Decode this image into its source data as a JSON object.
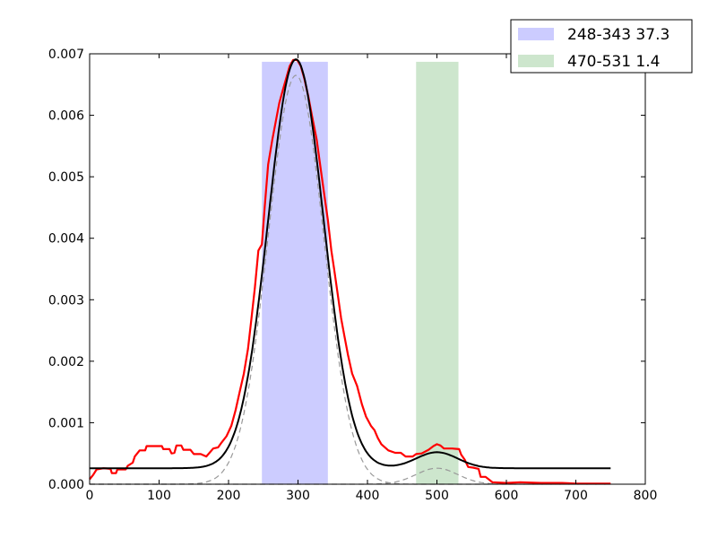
{
  "chart_data": {
    "type": "line",
    "title": "",
    "xlabel": "",
    "ylabel": "",
    "xlim": [
      0,
      800
    ],
    "ylim": [
      0,
      0.007
    ],
    "x_ticks": [
      0,
      100,
      200,
      300,
      400,
      500,
      600,
      700,
      800
    ],
    "y_ticks": [
      0.0,
      0.001,
      0.002,
      0.003,
      0.004,
      0.005,
      0.006,
      0.007
    ],
    "x_tick_labels": [
      "0",
      "100",
      "200",
      "300",
      "400",
      "500",
      "600",
      "700",
      "800"
    ],
    "y_tick_labels": [
      "0.000",
      "0.001",
      "0.002",
      "0.003",
      "0.004",
      "0.005",
      "0.006",
      "0.007"
    ],
    "grid": false,
    "legend_position": "top-right",
    "spans": [
      {
        "label": "248-343 37.3",
        "x0": 248,
        "x1": 343,
        "y_top": 0.00687,
        "color": "#ccccff"
      },
      {
        "label": "470-531 1.4",
        "x0": 470,
        "x1": 531,
        "y_top": 0.00687,
        "color": "#cde6cd"
      }
    ],
    "series": [
      {
        "color": "#ff0000",
        "style": "solid",
        "points": [
          [
            0,
            8e-05
          ],
          [
            5,
            0.00015
          ],
          [
            10,
            0.00024
          ],
          [
            20,
            0.00026
          ],
          [
            30,
            0.00025
          ],
          [
            32,
            0.00018
          ],
          [
            38,
            0.00018
          ],
          [
            40,
            0.00024
          ],
          [
            52,
            0.00024
          ],
          [
            55,
            0.0003
          ],
          [
            62,
            0.00035
          ],
          [
            65,
            0.00045
          ],
          [
            72,
            0.00055
          ],
          [
            80,
            0.00055
          ],
          [
            82,
            0.00062
          ],
          [
            104,
            0.00062
          ],
          [
            106,
            0.00057
          ],
          [
            115,
            0.00057
          ],
          [
            118,
            0.0005
          ],
          [
            122,
            0.00051
          ],
          [
            125,
            0.00063
          ],
          [
            132,
            0.00063
          ],
          [
            135,
            0.00056
          ],
          [
            145,
            0.00056
          ],
          [
            150,
            0.00049
          ],
          [
            160,
            0.00049
          ],
          [
            168,
            0.00045
          ],
          [
            178,
            0.00058
          ],
          [
            185,
            0.0006
          ],
          [
            190,
            0.00068
          ],
          [
            197,
            0.00078
          ],
          [
            204,
            0.00095
          ],
          [
            210,
            0.0012
          ],
          [
            216,
            0.0015
          ],
          [
            222,
            0.0018
          ],
          [
            228,
            0.0022
          ],
          [
            233,
            0.0027
          ],
          [
            238,
            0.0032
          ],
          [
            243,
            0.0038
          ],
          [
            248,
            0.0039
          ],
          [
            252,
            0.0045
          ],
          [
            257,
            0.0052
          ],
          [
            263,
            0.0056
          ],
          [
            268,
            0.0059
          ],
          [
            273,
            0.0062
          ],
          [
            278,
            0.0064
          ],
          [
            283,
            0.0066
          ],
          [
            288,
            0.0068
          ],
          [
            293,
            0.0069
          ],
          [
            299,
            0.0069
          ],
          [
            304,
            0.0068
          ],
          [
            309,
            0.0066
          ],
          [
            315,
            0.0063
          ],
          [
            320,
            0.006
          ],
          [
            327,
            0.0056
          ],
          [
            333,
            0.0051
          ],
          [
            338,
            0.0047
          ],
          [
            343,
            0.0043
          ],
          [
            348,
            0.0038
          ],
          [
            352,
            0.0035
          ],
          [
            357,
            0.0031
          ],
          [
            362,
            0.0027
          ],
          [
            367,
            0.0024
          ],
          [
            372,
            0.0021
          ],
          [
            378,
            0.0018
          ],
          [
            385,
            0.0016
          ],
          [
            392,
            0.0013
          ],
          [
            398,
            0.0011
          ],
          [
            405,
            0.00095
          ],
          [
            410,
            0.00088
          ],
          [
            415,
            0.00075
          ],
          [
            420,
            0.00065
          ],
          [
            430,
            0.00055
          ],
          [
            440,
            0.00051
          ],
          [
            448,
            0.00051
          ],
          [
            455,
            0.00045
          ],
          [
            465,
            0.00045
          ],
          [
            470,
            0.00049
          ],
          [
            478,
            0.0005
          ],
          [
            488,
            0.00056
          ],
          [
            495,
            0.00062
          ],
          [
            500,
            0.00065
          ],
          [
            505,
            0.00063
          ],
          [
            510,
            0.00058
          ],
          [
            522,
            0.00058
          ],
          [
            532,
            0.00057
          ],
          [
            535,
            0.00048
          ],
          [
            540,
            0.0004
          ],
          [
            545,
            0.00028
          ],
          [
            552,
            0.00027
          ],
          [
            560,
            0.00025
          ],
          [
            563,
            0.00012
          ],
          [
            570,
            0.00012
          ],
          [
            580,
            3e-05
          ],
          [
            600,
            2e-05
          ],
          [
            620,
            3e-05
          ],
          [
            650,
            2e-05
          ],
          [
            680,
            2e-05
          ],
          [
            700,
            1e-05
          ],
          [
            750,
            1e-05
          ]
        ]
      },
      {
        "color": "#000000",
        "style": "solid",
        "gaussians": [
          {
            "mu": 297,
            "sigma": 40,
            "amp": 0.00665
          },
          {
            "mu": 500,
            "sigma": 30,
            "amp": 0.00026
          }
        ],
        "baseline": 0.00026,
        "x_range": [
          0,
          750
        ]
      },
      {
        "color": "#999999",
        "style": "dashed",
        "gaussians": [
          {
            "mu": 297,
            "sigma": 40,
            "amp": 0.00665
          }
        ],
        "baseline": 0,
        "x_range": [
          0,
          750
        ]
      },
      {
        "color": "#999999",
        "style": "dashed",
        "gaussians": [
          {
            "mu": 500,
            "sigma": 30,
            "amp": 0.00026
          }
        ],
        "baseline": 0,
        "x_range": [
          0,
          750
        ]
      }
    ]
  }
}
